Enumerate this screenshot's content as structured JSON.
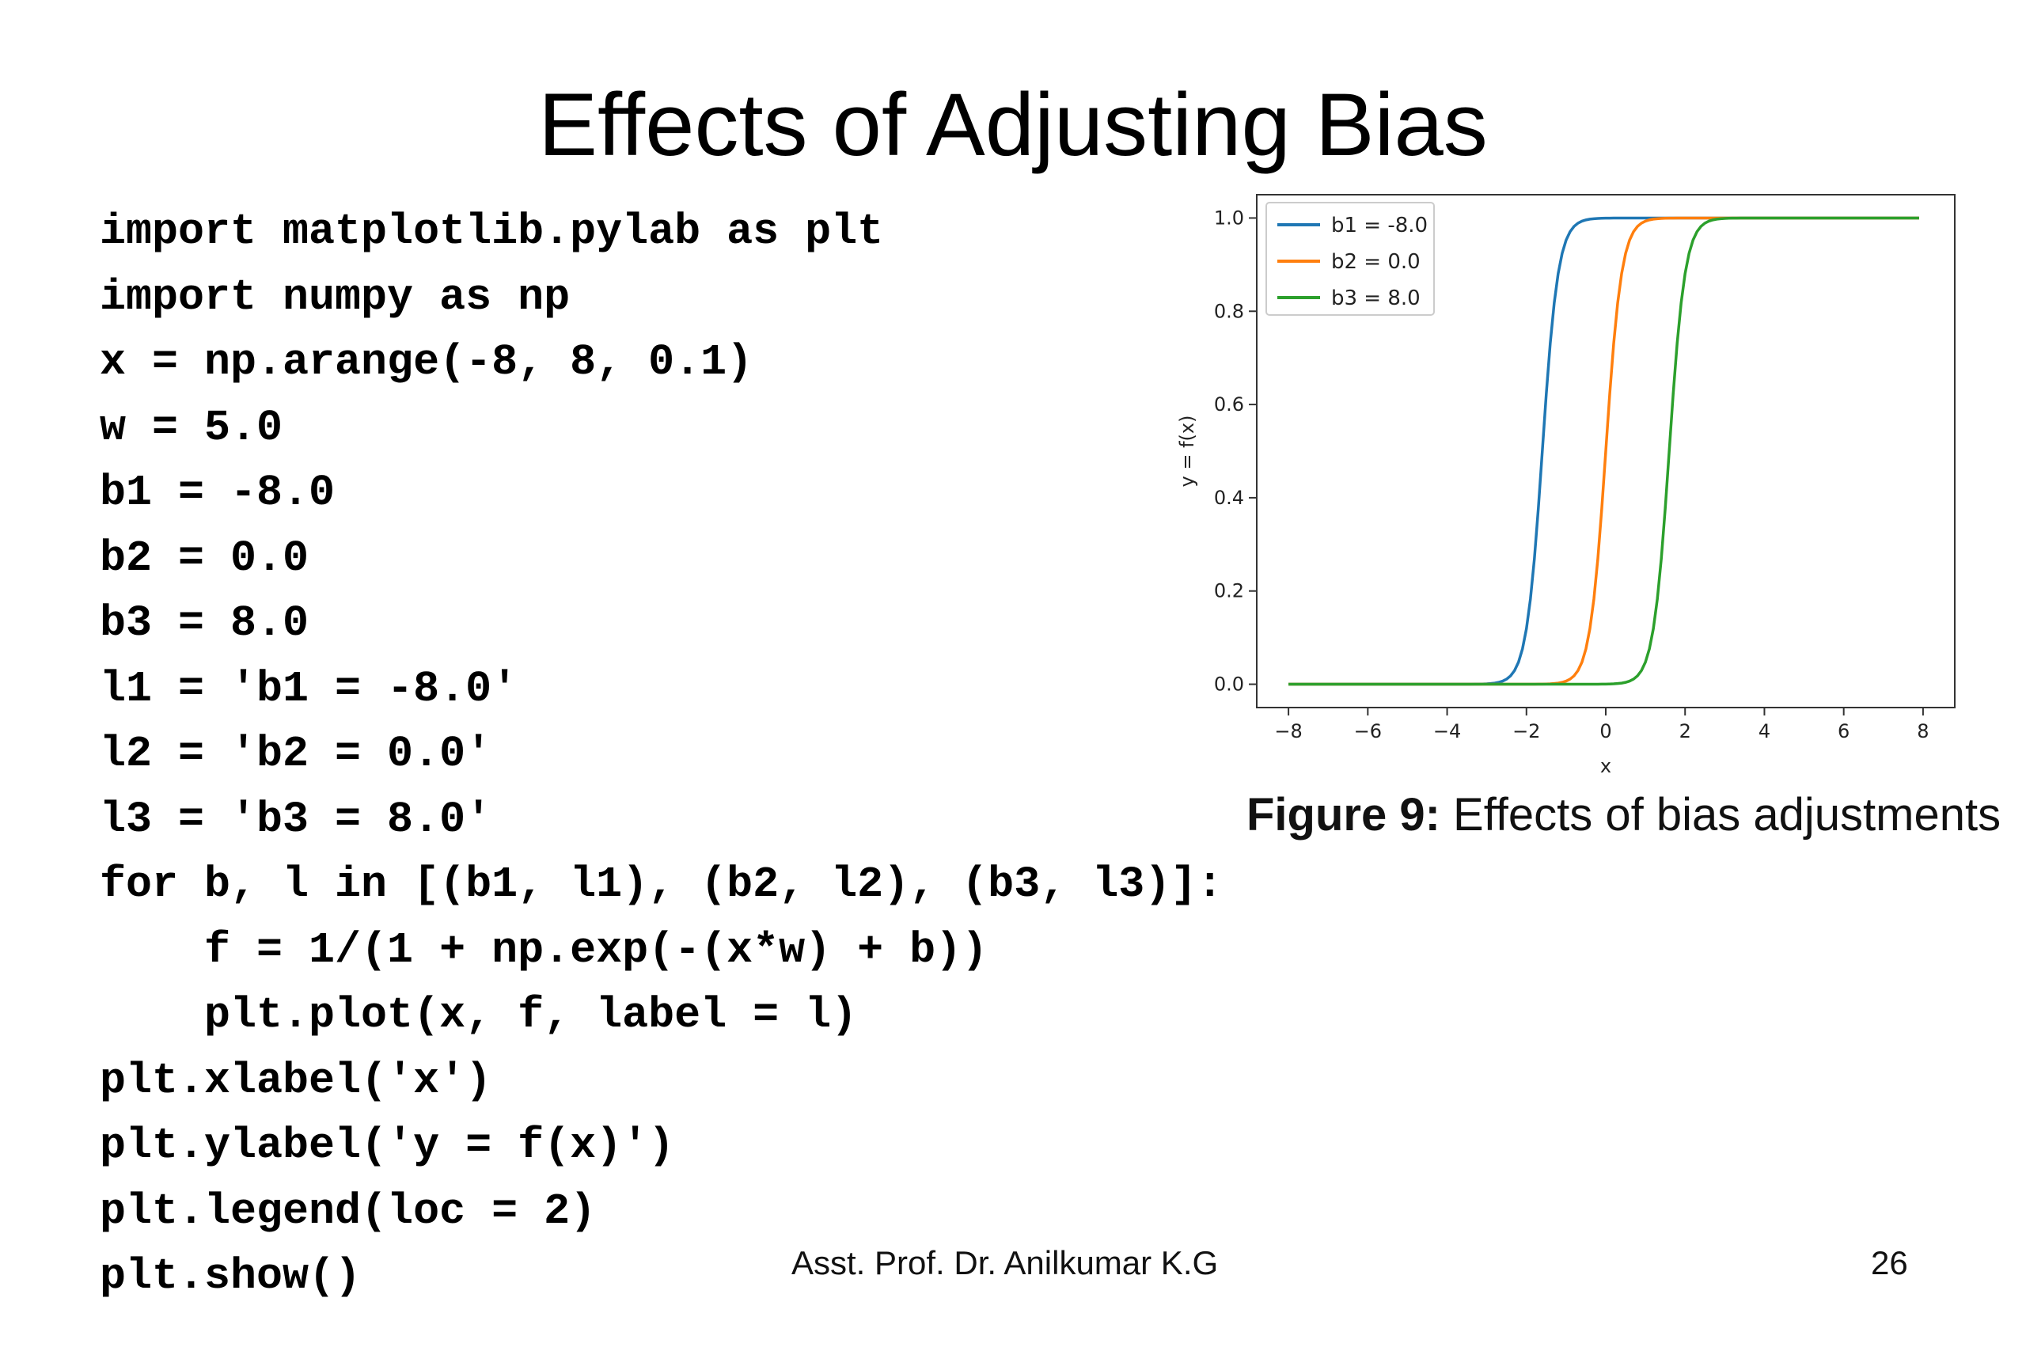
{
  "slide": {
    "title": "Effects of Adjusting Bias",
    "footer_author": "Asst. Prof. Dr. Anilkumar K.G",
    "page_number": "26"
  },
  "code_lines": [
    "import matplotlib.pylab as plt",
    "import numpy as np",
    "x = np.arange(-8, 8, 0.1)",
    "w = 5.0",
    "b1 = -8.0",
    "b2 = 0.0",
    "b3 = 8.0",
    "l1 = 'b1 = -8.0'",
    "l2 = 'b2 = 0.0'",
    "l3 = 'b3 = 8.0'",
    "for b, l in [(b1, l1), (b2, l2), (b3, l3)]:",
    "    f = 1/(1 + np.exp(-(x*w) + b))",
    "    plt.plot(x, f, label = l)",
    "plt.xlabel('x')",
    "plt.ylabel('y = f(x)')",
    "plt.legend(loc = 2)",
    "plt.show()"
  ],
  "figure": {
    "caption_label": "Figure 9:",
    "caption_text": " Effects of bias adjustments"
  },
  "chart_data": {
    "type": "line",
    "xlabel": "x",
    "ylabel": "y = f(x)",
    "xlim": [
      -8,
      8
    ],
    "ylim": [
      0,
      1
    ],
    "xticks": [
      -8,
      -6,
      -4,
      -2,
      0,
      2,
      4,
      6,
      8
    ],
    "yticks": [
      0.0,
      0.2,
      0.4,
      0.6,
      0.8,
      1.0
    ],
    "xtick_labels": [
      "−8",
      "−6",
      "−4",
      "−2",
      "0",
      "2",
      "4",
      "6",
      "8"
    ],
    "ytick_labels": [
      "0.0",
      "0.2",
      "0.4",
      "0.6",
      "0.8",
      "1.0"
    ],
    "legend_position": "top-left",
    "grid": false,
    "function": "y = 1/(1 + exp(-(5.0*x) + b))",
    "x_range": {
      "start": -8,
      "stop": 8,
      "step": 0.1
    },
    "weight": 5.0,
    "series": [
      {
        "name": "b1 = -8.0",
        "bias": -8.0,
        "color": "#1f77b4"
      },
      {
        "name": "b2 = 0.0",
        "bias": 0.0,
        "color": "#ff7f0e"
      },
      {
        "name": "b3 = 8.0",
        "bias": 8.0,
        "color": "#2ca02c"
      }
    ]
  }
}
